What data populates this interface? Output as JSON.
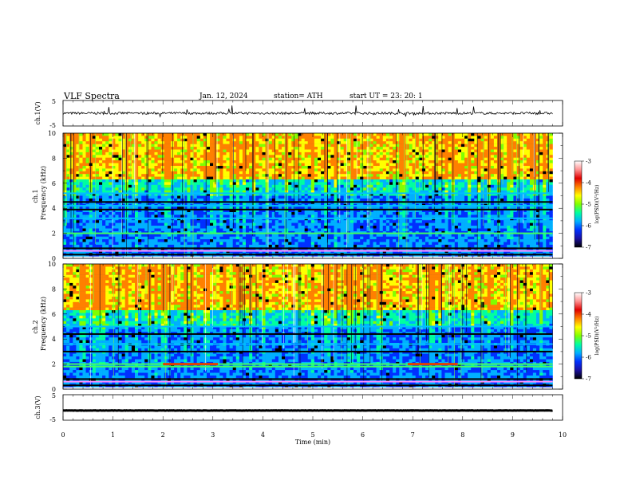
{
  "header": {
    "title": "VLF  Spectra",
    "date": "Jan.  12,  2024",
    "station": "station= ATH",
    "start": "start  UT  =    23: 20: 1"
  },
  "colors": {
    "background": "#ffffff",
    "spectrogram_floor": "#0000aa",
    "waveform": "#000000",
    "colormap": [
      "#000000",
      "#1a0fa0",
      "#0030ff",
      "#00b0ff",
      "#00ffa0",
      "#80ff00",
      "#ffff00",
      "#ff8000",
      "#e00000",
      "#ff9090",
      "#ffffff"
    ]
  },
  "chart_data": [
    {
      "type": "line",
      "panel": "ch1-waveform",
      "ylabel": "ch.1(V)",
      "ylim": [
        -5,
        5
      ],
      "yticks": [
        "5",
        "-5"
      ],
      "xlim": [
        0,
        10
      ],
      "series": [
        {
          "x": [
            0,
            9.8
          ],
          "y": [
            0,
            0
          ]
        }
      ]
    },
    {
      "type": "heatmap",
      "panel": "ch1-spectrogram",
      "ylabel": "Frequency  (kHz)",
      "channel_label": "ch.1",
      "ylim": [
        0,
        10
      ],
      "yticks": [
        "0",
        "2",
        "4",
        "6",
        "8",
        "10"
      ],
      "xlim": [
        0,
        9.8
      ],
      "colorbar": {
        "label": "log(PSD)(V²/Hz)",
        "ticks": [
          "-3",
          "-4",
          "-5",
          "-6",
          "-7"
        ],
        "range": [
          -7,
          -3
        ]
      },
      "bands_khz": [
        0.3,
        0.6,
        0.8,
        2.0,
        3.2,
        3.9,
        4.2,
        4.5,
        5.2
      ]
    },
    {
      "type": "heatmap",
      "panel": "ch2-spectrogram",
      "ylabel": "Frequency  (kHz)",
      "channel_label": "ch.2",
      "ylim": [
        0,
        10
      ],
      "yticks": [
        "0",
        "2",
        "4",
        "6",
        "8",
        "10"
      ],
      "xlim": [
        0,
        9.8
      ],
      "colorbar": {
        "label": "log(PSD)(V²/Hz)",
        "ticks": [
          "-3",
          "-4",
          "-5",
          "-6",
          "-7"
        ],
        "range": [
          -7,
          -3
        ]
      },
      "bands_khz": [
        0.3,
        0.6,
        0.8,
        1.8,
        2.0,
        3.0,
        3.6,
        4.4,
        5.0
      ]
    },
    {
      "type": "line",
      "panel": "ch3-waveform",
      "ylabel": "ch.3(V)",
      "ylim": [
        -5,
        5
      ],
      "yticks": [
        "5",
        "-5"
      ],
      "xlim": [
        0,
        10
      ],
      "series": [
        {
          "x": [
            0,
            9.8
          ],
          "y": [
            -1.2,
            -1.2
          ]
        }
      ]
    }
  ],
  "xaxis": {
    "label": "Time  (min)",
    "ticks": [
      "0",
      "1",
      "2",
      "3",
      "4",
      "5",
      "6",
      "7",
      "8",
      "9",
      "10"
    ],
    "range": [
      0,
      10
    ]
  }
}
